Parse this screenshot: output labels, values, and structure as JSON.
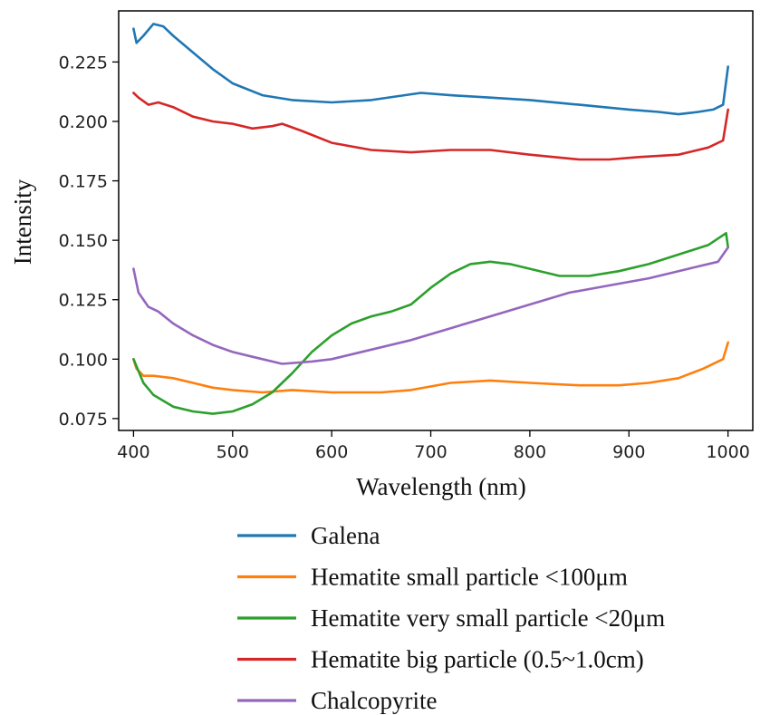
{
  "chart_data": {
    "type": "line",
    "title": "",
    "xlabel": "Wavelength (nm)",
    "ylabel": "Intensity",
    "xlim": [
      385,
      1025
    ],
    "ylim": [
      0.07,
      0.2465
    ],
    "xticks": [
      400,
      500,
      600,
      700,
      800,
      900,
      1000
    ],
    "xtick_labels": [
      "400",
      "500",
      "600",
      "700",
      "800",
      "900",
      "1000"
    ],
    "yticks": [
      0.075,
      0.1,
      0.125,
      0.15,
      0.175,
      0.2,
      0.225
    ],
    "ytick_labels": [
      "0.075",
      "0.100",
      "0.125",
      "0.150",
      "0.175",
      "0.200",
      "0.225"
    ],
    "grid": false,
    "legend_position": "bottom-outside",
    "series": [
      {
        "name": "Galena",
        "color": "#1f77b4",
        "x": [
          400,
          403,
          410,
          420,
          430,
          440,
          460,
          480,
          500,
          530,
          560,
          600,
          640,
          690,
          720,
          760,
          800,
          850,
          900,
          930,
          950,
          970,
          985,
          995,
          1000
        ],
        "y": [
          0.239,
          0.233,
          0.236,
          0.241,
          0.24,
          0.236,
          0.229,
          0.222,
          0.216,
          0.211,
          0.209,
          0.208,
          0.209,
          0.212,
          0.211,
          0.21,
          0.209,
          0.207,
          0.205,
          0.204,
          0.203,
          0.204,
          0.205,
          0.207,
          0.223
        ]
      },
      {
        "name": "Hematite small particle <100μm",
        "color": "#ff7f0e",
        "x": [
          400,
          403,
          410,
          420,
          440,
          460,
          480,
          500,
          530,
          560,
          600,
          650,
          680,
          720,
          760,
          800,
          850,
          890,
          920,
          950,
          975,
          995,
          1000
        ],
        "y": [
          0.1,
          0.096,
          0.093,
          0.093,
          0.092,
          0.09,
          0.088,
          0.087,
          0.086,
          0.087,
          0.086,
          0.086,
          0.087,
          0.09,
          0.091,
          0.09,
          0.089,
          0.089,
          0.09,
          0.092,
          0.096,
          0.1,
          0.107
        ]
      },
      {
        "name": "Hematite very small particle <20μm",
        "color": "#2ca02c",
        "x": [
          400,
          410,
          420,
          440,
          460,
          480,
          500,
          520,
          540,
          560,
          580,
          600,
          620,
          640,
          660,
          680,
          700,
          720,
          740,
          760,
          780,
          800,
          830,
          860,
          890,
          920,
          950,
          980,
          998,
          1000
        ],
        "y": [
          0.1,
          0.09,
          0.085,
          0.08,
          0.078,
          0.077,
          0.078,
          0.081,
          0.086,
          0.094,
          0.103,
          0.11,
          0.115,
          0.118,
          0.12,
          0.123,
          0.13,
          0.136,
          0.14,
          0.141,
          0.14,
          0.138,
          0.135,
          0.135,
          0.137,
          0.14,
          0.144,
          0.148,
          0.153,
          0.147
        ]
      },
      {
        "name": "Hematite big particle (0.5~1.0cm)",
        "color": "#d62728",
        "x": [
          400,
          405,
          415,
          425,
          440,
          460,
          480,
          500,
          520,
          540,
          550,
          570,
          600,
          640,
          680,
          720,
          760,
          800,
          850,
          880,
          910,
          950,
          980,
          995,
          1000
        ],
        "y": [
          0.212,
          0.21,
          0.207,
          0.208,
          0.206,
          0.202,
          0.2,
          0.199,
          0.197,
          0.198,
          0.199,
          0.196,
          0.191,
          0.188,
          0.187,
          0.188,
          0.188,
          0.186,
          0.184,
          0.184,
          0.185,
          0.186,
          0.189,
          0.192,
          0.205
        ]
      },
      {
        "name": "Chalcopyrite",
        "color": "#9467bd",
        "x": [
          400,
          405,
          415,
          425,
          440,
          460,
          480,
          500,
          520,
          550,
          580,
          600,
          640,
          680,
          720,
          760,
          800,
          840,
          880,
          920,
          960,
          990,
          1000
        ],
        "y": [
          0.138,
          0.128,
          0.122,
          0.12,
          0.115,
          0.11,
          0.106,
          0.103,
          0.101,
          0.098,
          0.099,
          0.1,
          0.104,
          0.108,
          0.113,
          0.118,
          0.123,
          0.128,
          0.131,
          0.134,
          0.138,
          0.141,
          0.147
        ]
      }
    ]
  }
}
